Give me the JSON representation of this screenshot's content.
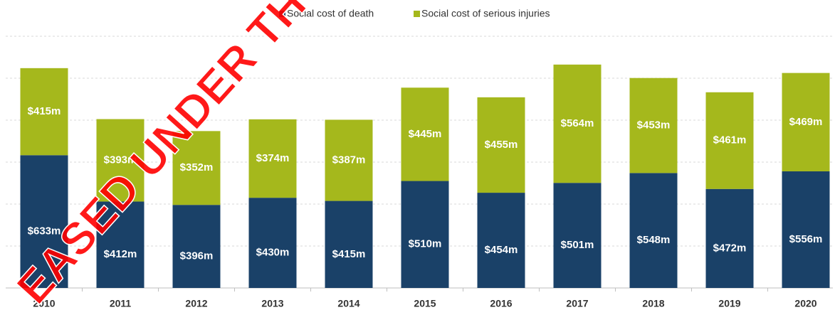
{
  "chart_data": {
    "type": "stacked_bar",
    "categories": [
      "2010",
      "2011",
      "2012",
      "2013",
      "2014",
      "2015",
      "2016",
      "2017",
      "2018",
      "2019",
      "2020"
    ],
    "series": [
      {
        "name": "Social cost of death",
        "color": "#1a4168",
        "values": [
          633,
          412,
          396,
          430,
          415,
          510,
          454,
          501,
          548,
          472,
          556
        ],
        "value_labels": [
          "$633m",
          "$412m",
          "$396m",
          "$430m",
          "$415m",
          "$510m",
          "$454m",
          "$501m",
          "$548m",
          "$472m",
          "$556m"
        ]
      },
      {
        "name": "Social cost of serious injuries",
        "color": "#a5b81c",
        "values": [
          415,
          393,
          352,
          374,
          387,
          445,
          455,
          564,
          453,
          461,
          469
        ],
        "value_labels": [
          "$415m",
          "$393m",
          "$352m",
          "$374m",
          "$387m",
          "$445m",
          "$455m",
          "$564m",
          "$453m",
          "$461m",
          "$469m"
        ]
      }
    ],
    "ylim": [
      0,
      1200
    ],
    "yticks": [
      0,
      200,
      400,
      600,
      800,
      1000,
      1200
    ],
    "grid": true,
    "watermark": "EASED UNDER TH"
  }
}
